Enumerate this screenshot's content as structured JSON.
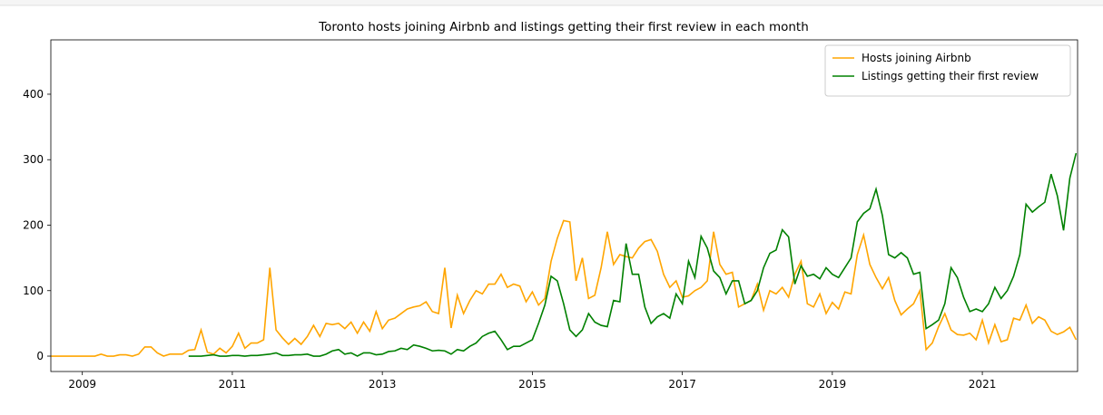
{
  "chart_data": {
    "type": "line",
    "title": "Toronto hosts joining Airbnb and listings getting their first review in each month",
    "x": [
      2008.583,
      2008.667,
      2008.75,
      2008.833,
      2008.917,
      2009.0,
      2009.083,
      2009.167,
      2009.25,
      2009.333,
      2009.417,
      2009.5,
      2009.583,
      2009.667,
      2009.75,
      2009.833,
      2009.917,
      2010.0,
      2010.083,
      2010.167,
      2010.25,
      2010.333,
      2010.417,
      2010.5,
      2010.583,
      2010.667,
      2010.75,
      2010.833,
      2010.917,
      2011.0,
      2011.083,
      2011.167,
      2011.25,
      2011.333,
      2011.417,
      2011.5,
      2011.583,
      2011.667,
      2011.75,
      2011.833,
      2011.917,
      2012.0,
      2012.083,
      2012.167,
      2012.25,
      2012.333,
      2012.417,
      2012.5,
      2012.583,
      2012.667,
      2012.75,
      2012.833,
      2012.917,
      2013.0,
      2013.083,
      2013.167,
      2013.25,
      2013.333,
      2013.417,
      2013.5,
      2013.583,
      2013.667,
      2013.75,
      2013.833,
      2013.917,
      2014.0,
      2014.083,
      2014.167,
      2014.25,
      2014.333,
      2014.417,
      2014.5,
      2014.583,
      2014.667,
      2014.75,
      2014.833,
      2014.917,
      2015.0,
      2015.083,
      2015.167,
      2015.25,
      2015.333,
      2015.417,
      2015.5,
      2015.583,
      2015.667,
      2015.75,
      2015.833,
      2015.917,
      2016.0,
      2016.083,
      2016.167,
      2016.25,
      2016.333,
      2016.417,
      2016.5,
      2016.583,
      2016.667,
      2016.75,
      2016.833,
      2016.917,
      2017.0,
      2017.083,
      2017.167,
      2017.25,
      2017.333,
      2017.417,
      2017.5,
      2017.583,
      2017.667,
      2017.75,
      2017.833,
      2017.917,
      2018.0,
      2018.083,
      2018.167,
      2018.25,
      2018.333,
      2018.417,
      2018.5,
      2018.583,
      2018.667,
      2018.75,
      2018.833,
      2018.917,
      2019.0,
      2019.083,
      2019.167,
      2019.25,
      2019.333,
      2019.417,
      2019.5,
      2019.583,
      2019.667,
      2019.75,
      2019.833,
      2019.917,
      2020.0,
      2020.083,
      2020.167,
      2020.25,
      2020.333,
      2020.417,
      2020.5,
      2020.583,
      2020.667,
      2020.75,
      2020.833,
      2020.917,
      2021.0,
      2021.083,
      2021.167,
      2021.25,
      2021.333,
      2021.417,
      2021.5,
      2021.583,
      2021.667,
      2021.75,
      2021.833,
      2021.917,
      2022.0,
      2022.083,
      2022.167,
      2022.25
    ],
    "series": [
      {
        "name": "Hosts joining Airbnb",
        "color": "#ffa500",
        "values": [
          0,
          0,
          0,
          0,
          0,
          0,
          0,
          0,
          3,
          0,
          0,
          2,
          2,
          0,
          3,
          14,
          14,
          5,
          0,
          3,
          3,
          3,
          9,
          10,
          40,
          6,
          3,
          12,
          5,
          15,
          35,
          12,
          20,
          20,
          25,
          135,
          40,
          28,
          18,
          27,
          18,
          30,
          47,
          30,
          50,
          48,
          50,
          42,
          52,
          35,
          52,
          38,
          68,
          42,
          55,
          58,
          65,
          72,
          75,
          77,
          83,
          68,
          65,
          135,
          43,
          93,
          65,
          85,
          100,
          95,
          110,
          110,
          125,
          105,
          110,
          107,
          83,
          98,
          78,
          88,
          145,
          180,
          207,
          205,
          115,
          150,
          88,
          93,
          135,
          190,
          140,
          155,
          152,
          150,
          165,
          175,
          178,
          160,
          125,
          105,
          115,
          90,
          92,
          100,
          105,
          115,
          190,
          140,
          125,
          128,
          75,
          80,
          85,
          110,
          70,
          100,
          95,
          105,
          90,
          125,
          145,
          80,
          75,
          95,
          65,
          82,
          72,
          98,
          95,
          155,
          185,
          140,
          120,
          103,
          120,
          85,
          63,
          72,
          80,
          100,
          10,
          20,
          45,
          65,
          40,
          33,
          32,
          35,
          25,
          55,
          20,
          48,
          22,
          25,
          58,
          55,
          78,
          50,
          60,
          55,
          38,
          33,
          37,
          44,
          25
        ]
      },
      {
        "name": "Listings getting their first review",
        "color": "#008000",
        "values": [
          null,
          null,
          null,
          null,
          null,
          null,
          null,
          null,
          null,
          null,
          null,
          null,
          null,
          null,
          null,
          null,
          null,
          null,
          null,
          null,
          null,
          null,
          0,
          0,
          0,
          1,
          2,
          0,
          0,
          1,
          1,
          0,
          1,
          1,
          2,
          3,
          5,
          1,
          1,
          2,
          2,
          3,
          0,
          0,
          3,
          8,
          10,
          3,
          5,
          0,
          5,
          5,
          2,
          3,
          7,
          8,
          12,
          10,
          17,
          15,
          12,
          8,
          9,
          8,
          3,
          10,
          8,
          15,
          20,
          30,
          35,
          38,
          25,
          10,
          15,
          15,
          20,
          25,
          50,
          78,
          122,
          115,
          80,
          40,
          30,
          40,
          65,
          52,
          47,
          45,
          85,
          83,
          172,
          125,
          125,
          75,
          50,
          60,
          65,
          58,
          95,
          80,
          145,
          120,
          183,
          165,
          130,
          120,
          95,
          115,
          115,
          80,
          85,
          100,
          135,
          157,
          162,
          193,
          182,
          110,
          138,
          122,
          125,
          118,
          135,
          125,
          120,
          135,
          150,
          205,
          218,
          225,
          255,
          215,
          155,
          150,
          158,
          150,
          125,
          128,
          42,
          48,
          55,
          80,
          135,
          120,
          90,
          68,
          72,
          68,
          80,
          105,
          88,
          100,
          122,
          155,
          232,
          220,
          228,
          235,
          278,
          245,
          192,
          272,
          310
        ]
      }
    ],
    "xlim": [
      2008.58,
      2022.27
    ],
    "xticks": [
      2009,
      2011,
      2013,
      2015,
      2017,
      2019,
      2021
    ],
    "ylim": [
      -23.5,
      483
    ],
    "yticks": [
      0,
      100,
      200,
      300,
      400
    ],
    "legend": "upper right"
  }
}
